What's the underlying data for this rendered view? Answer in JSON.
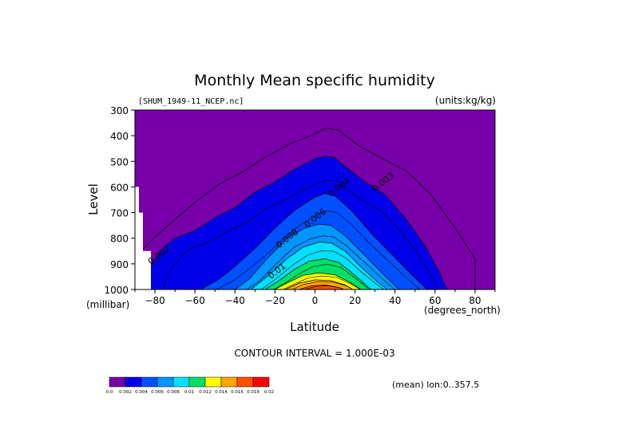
{
  "chart_data": {
    "type": "heatmap",
    "title": "Monthly Mean specific humidity",
    "file_label": "[SHUM_1949-11_NCEP.nc]",
    "units_label": "(units:kg/kg)",
    "xlabel": "Latitude",
    "ylabel": "Level",
    "x_units": "(degrees_north)",
    "y_units": "(millibar)",
    "xlim": [
      -90,
      90
    ],
    "ylim": [
      1000,
      300
    ],
    "x_ticks": [
      -80,
      -60,
      -40,
      -20,
      0,
      20,
      40,
      60,
      80
    ],
    "y_ticks": [
      300,
      400,
      500,
      600,
      700,
      800,
      900,
      1000
    ],
    "contour_interval_text": "CONTOUR INTERVAL = 1.000E-03",
    "footer_text": "(mean) lon:0..357.5",
    "contour_labels": [
      {
        "text": "0.002",
        "x": -82,
        "y": 905
      },
      {
        "text": "0.003",
        "x": 30,
        "y": 620
      },
      {
        "text": "0.004",
        "x": 8,
        "y": 640
      },
      {
        "text": "0.006",
        "x": -4,
        "y": 760
      },
      {
        "text": "0.008",
        "x": -18,
        "y": 840
      },
      {
        "text": "0.01",
        "x": -22,
        "y": 960
      }
    ],
    "colorbar": {
      "boundaries": [
        0.0,
        0.002,
        0.004,
        0.006,
        0.008,
        0.01,
        0.012,
        0.014,
        0.016,
        0.018,
        0.02
      ],
      "tick_labels": [
        "0.0",
        "0.002",
        "0.004",
        "0.006",
        "0.008",
        "0.01",
        "0.012",
        "0.014",
        "0.016",
        "0.018",
        "0.02"
      ],
      "colors": [
        "#7800a8",
        "#0000e8",
        "#0050ff",
        "#0096ff",
        "#00e0ff",
        "#00e066",
        "#ffff00",
        "#ffa500",
        "#ff5000",
        "#ff0000"
      ]
    },
    "filled_contours": [
      {
        "level": 0.002,
        "color": "#0000e8",
        "points": [
          [
            -86,
            1000
          ],
          [
            -86,
            980
          ],
          [
            -84,
            930
          ],
          [
            -80,
            880
          ],
          [
            -75,
            830
          ],
          [
            -70,
            800
          ],
          [
            -60,
            770
          ],
          [
            -50,
            720
          ],
          [
            -40,
            680
          ],
          [
            -30,
            620
          ],
          [
            -20,
            580
          ],
          [
            -12,
            540
          ],
          [
            -5,
            510
          ],
          [
            0,
            490
          ],
          [
            5,
            480
          ],
          [
            10,
            485
          ],
          [
            15,
            520
          ],
          [
            25,
            580
          ],
          [
            35,
            630
          ],
          [
            45,
            720
          ],
          [
            55,
            830
          ],
          [
            62,
            930
          ],
          [
            66,
            1000
          ]
        ]
      },
      {
        "level": 0.004,
        "color": "#0050ff",
        "points": [
          [
            -57,
            1000
          ],
          [
            -48,
            960
          ],
          [
            -40,
            910
          ],
          [
            -30,
            840
          ],
          [
            -20,
            760
          ],
          [
            -10,
            690
          ],
          [
            0,
            640
          ],
          [
            5,
            625
          ],
          [
            10,
            635
          ],
          [
            18,
            690
          ],
          [
            28,
            780
          ],
          [
            38,
            860
          ],
          [
            48,
            940
          ],
          [
            56,
            1000
          ]
        ]
      },
      {
        "level": 0.006,
        "color": "#0096ff",
        "points": [
          [
            -40,
            1000
          ],
          [
            -33,
            960
          ],
          [
            -24,
            880
          ],
          [
            -14,
            800
          ],
          [
            -5,
            760
          ],
          [
            2,
            745
          ],
          [
            8,
            750
          ],
          [
            15,
            790
          ],
          [
            24,
            860
          ],
          [
            34,
            940
          ],
          [
            42,
            1000
          ]
        ]
      },
      {
        "level": 0.008,
        "color": "#00e0ff",
        "points": [
          [
            -32,
            1000
          ],
          [
            -24,
            950
          ],
          [
            -14,
            880
          ],
          [
            -6,
            835
          ],
          [
            2,
            815
          ],
          [
            8,
            818
          ],
          [
            15,
            850
          ],
          [
            24,
            920
          ],
          [
            32,
            975
          ],
          [
            36,
            1000
          ]
        ]
      },
      {
        "level": 0.01,
        "color": "#00e066",
        "points": [
          [
            -25,
            1000
          ],
          [
            -18,
            965
          ],
          [
            -10,
            920
          ],
          [
            -3,
            890
          ],
          [
            5,
            880
          ],
          [
            12,
            895
          ],
          [
            20,
            945
          ],
          [
            28,
            1000
          ]
        ]
      },
      {
        "level": 0.012,
        "color": "#ffff00",
        "points": [
          [
            -20,
            1000
          ],
          [
            -14,
            975
          ],
          [
            -6,
            945
          ],
          [
            2,
            935
          ],
          [
            10,
            943
          ],
          [
            17,
            970
          ],
          [
            23,
            1000
          ]
        ]
      },
      {
        "level": 0.014,
        "color": "#ffa500",
        "points": [
          [
            -15,
            1000
          ],
          [
            -8,
            975
          ],
          [
            0,
            962
          ],
          [
            8,
            965
          ],
          [
            15,
            982
          ],
          [
            19,
            1000
          ]
        ]
      },
      {
        "level": 0.016,
        "color": "#ff5000",
        "points": [
          [
            -8,
            1000
          ],
          [
            -2,
            986
          ],
          [
            5,
            982
          ],
          [
            12,
            992
          ],
          [
            14,
            1000
          ]
        ]
      }
    ],
    "outer_contour": {
      "level": 0.001,
      "points": [
        [
          -86,
          1000
        ],
        [
          -87,
          850
        ],
        [
          -82,
          810
        ],
        [
          -72,
          740
        ],
        [
          -60,
          660
        ],
        [
          -48,
          590
        ],
        [
          -36,
          540
        ],
        [
          -24,
          480
        ],
        [
          -12,
          430
        ],
        [
          -2,
          400
        ],
        [
          6,
          370
        ],
        [
          12,
          380
        ],
        [
          22,
          440
        ],
        [
          34,
          490
        ],
        [
          46,
          540
        ],
        [
          58,
          630
        ],
        [
          70,
          760
        ],
        [
          80,
          880
        ],
        [
          80,
          1000
        ]
      ]
    },
    "missing_region": {
      "points": [
        [
          -90,
          600
        ],
        [
          -88,
          600
        ],
        [
          -88,
          700
        ],
        [
          -86,
          700
        ],
        [
          -86,
          850
        ],
        [
          -82,
          850
        ],
        [
          -82,
          1000
        ],
        [
          -90,
          1000
        ]
      ]
    }
  }
}
